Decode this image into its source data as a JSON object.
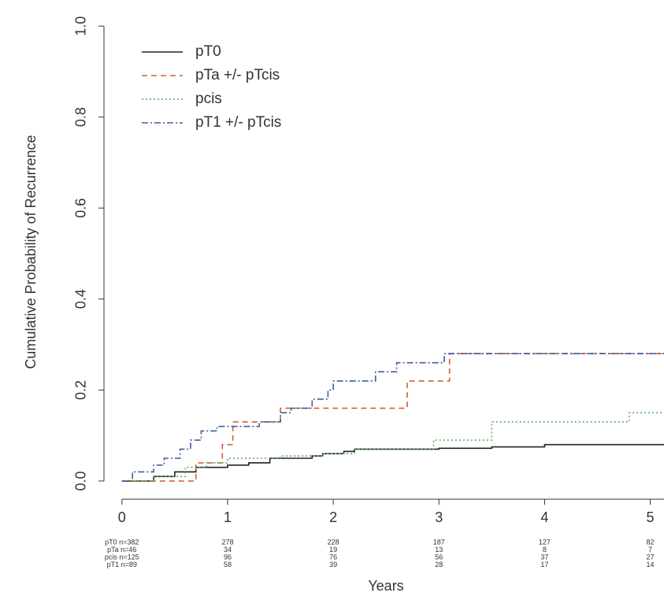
{
  "chart_data": {
    "type": "step",
    "y_label": "Cumulative Probability of Recurrence",
    "x_label": "Years",
    "xlim": [
      -0.17,
      5.13
    ],
    "ylim": [
      -0.04,
      1.04
    ],
    "xticks": [
      0,
      1,
      2,
      3,
      4,
      5
    ],
    "yticks": [
      {
        "value": 0,
        "label": "0.0"
      },
      0.2,
      0.4,
      0.6,
      0.8,
      {
        "value": 1,
        "label": "1.0"
      }
    ],
    "series": [
      {
        "name": "pT0",
        "color": "#222222",
        "dash": "none",
        "x": [
          0,
          0.3,
          0.5,
          0.7,
          1.0,
          1.2,
          1.4,
          1.8,
          1.9,
          2.1,
          2.2,
          3.0,
          3.5,
          4.0,
          5.13
        ],
        "values": [
          0,
          0.01,
          0.02,
          0.03,
          0.035,
          0.04,
          0.05,
          0.055,
          0.06,
          0.065,
          0.07,
          0.072,
          0.075,
          0.08,
          0.08
        ]
      },
      {
        "name": "pTa +/- pTcis",
        "color": "#d0603c",
        "dash": "7,5",
        "x": [
          0,
          0.7,
          0.95,
          1.05,
          1.5,
          2.7,
          3.1,
          5.13
        ],
        "values": [
          0,
          0.04,
          0.08,
          0.13,
          0.16,
          0.22,
          0.28,
          0.28
        ]
      },
      {
        "name": "pcis",
        "color": "#5aae5a",
        "dash": "2,3",
        "x": [
          0,
          0.3,
          0.6,
          0.8,
          1.0,
          1.5,
          1.9,
          2.2,
          2.95,
          3.5,
          4.8,
          5.13
        ],
        "values": [
          0,
          0.01,
          0.03,
          0.04,
          0.05,
          0.055,
          0.06,
          0.07,
          0.09,
          0.13,
          0.15,
          0.15
        ]
      },
      {
        "name": "pT1 +/- pTcis",
        "color": "#3f5f9f",
        "dash": "8,3,2,3",
        "x": [
          0,
          0.1,
          0.3,
          0.4,
          0.55,
          0.65,
          0.75,
          0.9,
          1.3,
          1.5,
          1.6,
          1.8,
          1.95,
          2.0,
          2.4,
          2.6,
          3.05,
          5.13
        ],
        "values": [
          0,
          0.02,
          0.035,
          0.05,
          0.07,
          0.09,
          0.11,
          0.12,
          0.13,
          0.15,
          0.16,
          0.18,
          0.2,
          0.22,
          0.24,
          0.26,
          0.28,
          0.28
        ]
      }
    ],
    "risk_table": [
      {
        "label": "pT0 n=382",
        "counts": [
          278,
          228,
          187,
          127,
          82
        ]
      },
      {
        "label": "pTa n=46",
        "counts": [
          34,
          19,
          13,
          8,
          7
        ]
      },
      {
        "label": "pcis n=125",
        "counts": [
          96,
          76,
          56,
          37,
          27
        ]
      },
      {
        "label": "pT1 n=89",
        "counts": [
          58,
          39,
          28,
          17,
          14
        ]
      }
    ]
  }
}
